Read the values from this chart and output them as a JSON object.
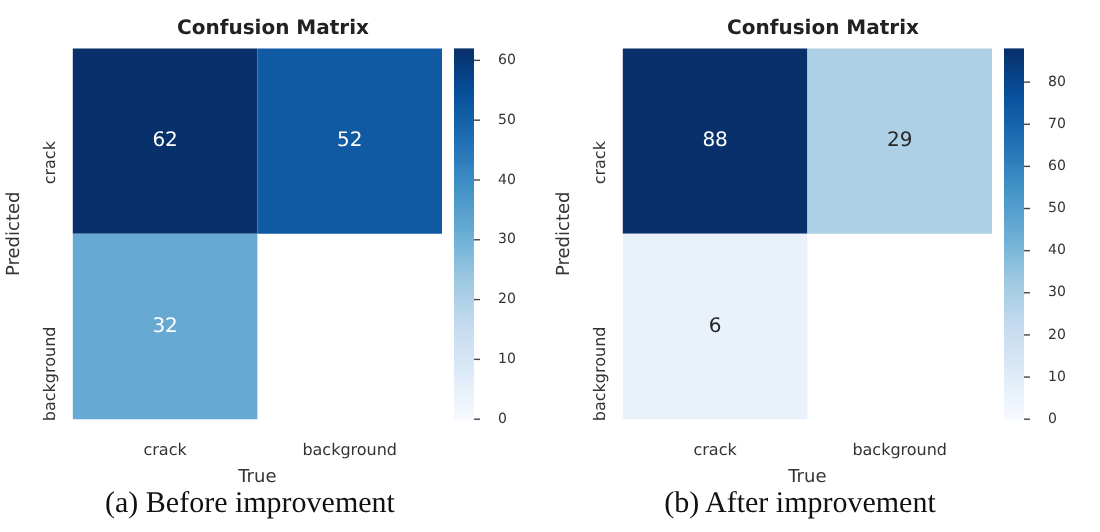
{
  "chart_data": [
    {
      "type": "heatmap",
      "title": "Confusion Matrix",
      "xlabel": "True",
      "ylabel": "Predicted",
      "categories": [
        "crack",
        "background"
      ],
      "y_categories": [
        "crack",
        "background"
      ],
      "cells": [
        [
          62,
          52
        ],
        [
          32,
          null
        ]
      ],
      "clim": [
        0,
        62
      ],
      "cticks": [
        0,
        10,
        20,
        30,
        40,
        50,
        60
      ],
      "data_labels": true,
      "annotations": [
        "(a) Before improvement"
      ]
    },
    {
      "type": "heatmap",
      "title": "Confusion Matrix",
      "xlabel": "True",
      "ylabel": "Predicted",
      "categories": [
        "crack",
        "background"
      ],
      "y_categories": [
        "crack",
        "background"
      ],
      "cells": [
        [
          88,
          29
        ],
        [
          6,
          null
        ]
      ],
      "clim": [
        0,
        88
      ],
      "cticks": [
        0,
        10,
        20,
        30,
        40,
        50,
        60,
        70,
        80
      ],
      "data_labels": true,
      "annotations": [
        "(b) After improvement"
      ]
    }
  ]
}
